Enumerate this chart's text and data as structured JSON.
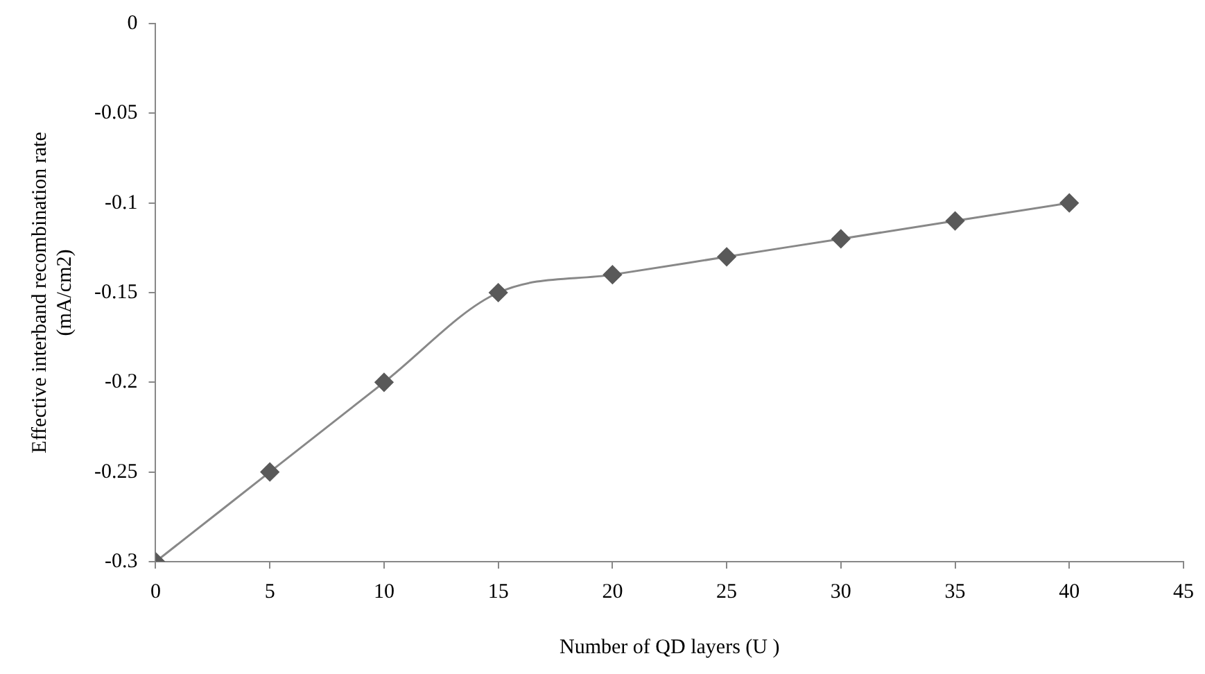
{
  "chart_data": {
    "type": "line",
    "xlabel": "Number of QD layers (U )",
    "ylabel": "Effective interband recombination rate (mA/cm2)",
    "x": [
      0,
      5,
      10,
      15,
      20,
      25,
      30,
      35,
      40
    ],
    "series": [
      {
        "color": "#595959",
        "values": [
          -0.3,
          -0.25,
          -0.2,
          -0.15,
          -0.14,
          -0.13,
          -0.12,
          -0.11,
          -0.1
        ]
      }
    ],
    "xlim": [
      0,
      45
    ],
    "xticks": [
      0,
      5,
      10,
      15,
      20,
      25,
      30,
      35,
      40,
      45
    ],
    "ylim": [
      -0.3,
      0
    ],
    "yticks": [
      -0.3,
      -0.25,
      -0.2,
      -0.15,
      -0.1,
      -0.05,
      0
    ],
    "grid": false,
    "legend": false,
    "marker": "diamond",
    "line_style": "solid"
  }
}
